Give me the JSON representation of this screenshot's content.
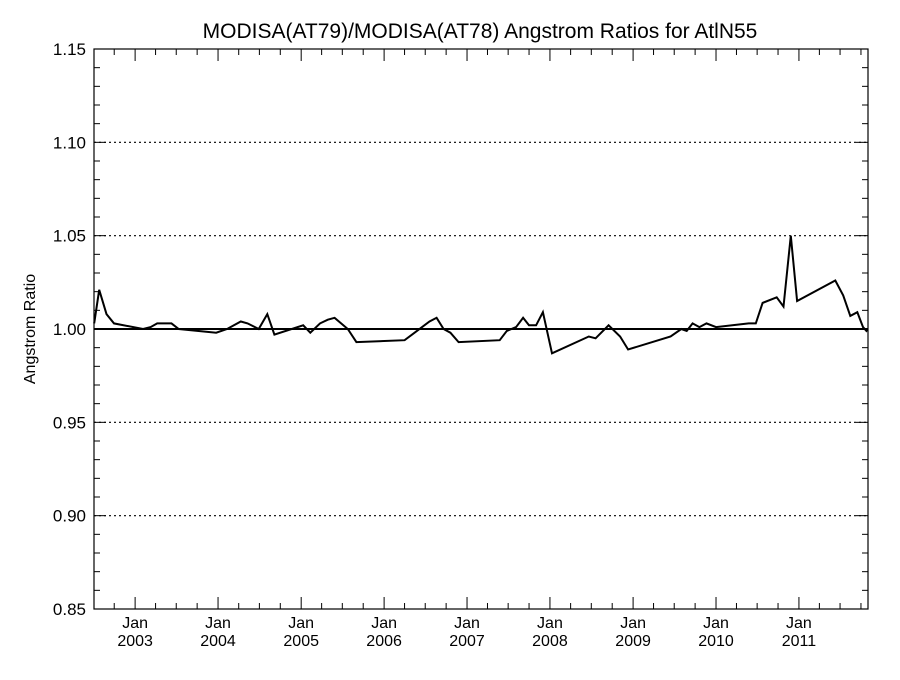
{
  "chart_data": {
    "type": "line",
    "title": "MODISA(AT79)/MODISA(AT78)  Angstrom Ratios for AtlN55",
    "xlabel": "",
    "ylabel": "Angstrom Ratio",
    "ylim": [
      0.85,
      1.15
    ],
    "xlim": [
      "2002-07-04",
      "2011-11-01"
    ],
    "yticks": [
      "0.85",
      "0.90",
      "0.95",
      "1.00",
      "1.05",
      "1.10",
      "1.15"
    ],
    "xticks": [
      {
        "month": "Jan",
        "year": "2003",
        "date": "2003-01-01"
      },
      {
        "month": "Jan",
        "year": "2004",
        "date": "2004-01-01"
      },
      {
        "month": "Jan",
        "year": "2005",
        "date": "2005-01-01"
      },
      {
        "month": "Jan",
        "year": "2006",
        "date": "2006-01-01"
      },
      {
        "month": "Jan",
        "year": "2007",
        "date": "2007-01-01"
      },
      {
        "month": "Jan",
        "year": "2008",
        "date": "2008-01-01"
      },
      {
        "month": "Jan",
        "year": "2009",
        "date": "2009-01-01"
      },
      {
        "month": "Jan",
        "year": "2010",
        "date": "2010-01-01"
      },
      {
        "month": "Jan",
        "year": "2011",
        "date": "2011-01-01"
      }
    ],
    "grid": "dotted horizontal lines at major y ticks",
    "reference_line": 1.0,
    "series": [
      {
        "color": "#000000",
        "points": [
          [
            "2002-07-05",
            1.003
          ],
          [
            "2002-07-27",
            1.021
          ],
          [
            "2002-08-28",
            1.008
          ],
          [
            "2002-09-30",
            1.003
          ],
          [
            "2003-02-05",
            1.0
          ],
          [
            "2003-03-10",
            1.001
          ],
          [
            "2003-04-08",
            1.003
          ],
          [
            "2003-05-12",
            1.003
          ],
          [
            "2003-06-10",
            1.003
          ],
          [
            "2003-07-12",
            1.0
          ],
          [
            "2003-12-24",
            0.998
          ],
          [
            "2004-02-10",
            1.0
          ],
          [
            "2004-04-10",
            1.004
          ],
          [
            "2004-05-10",
            1.003
          ],
          [
            "2004-06-28",
            1.0
          ],
          [
            "2004-08-05",
            1.008
          ],
          [
            "2004-09-05",
            0.997
          ],
          [
            "2005-01-10",
            1.002
          ],
          [
            "2005-02-10",
            0.998
          ],
          [
            "2005-03-25",
            1.003
          ],
          [
            "2005-04-28",
            1.005
          ],
          [
            "2005-05-28",
            1.006
          ],
          [
            "2005-07-25",
            1.0
          ],
          [
            "2005-09-01",
            0.993
          ],
          [
            "2006-04-01",
            0.994
          ],
          [
            "2006-05-15",
            0.998
          ],
          [
            "2006-07-20",
            1.004
          ],
          [
            "2006-08-20",
            1.006
          ],
          [
            "2006-09-20",
            1.0
          ],
          [
            "2006-10-20",
            0.998
          ],
          [
            "2006-11-25",
            0.993
          ],
          [
            "2007-05-25",
            0.994
          ],
          [
            "2007-06-25",
            0.999
          ],
          [
            "2007-08-05",
            1.001
          ],
          [
            "2007-09-05",
            1.006
          ],
          [
            "2007-10-01",
            1.002
          ],
          [
            "2007-11-01",
            1.002
          ],
          [
            "2007-12-01",
            1.009
          ],
          [
            "2008-01-10",
            0.987
          ],
          [
            "2008-06-20",
            0.996
          ],
          [
            "2008-07-20",
            0.995
          ],
          [
            "2008-09-15",
            1.002
          ],
          [
            "2008-11-05",
            0.996
          ],
          [
            "2008-12-10",
            0.989
          ],
          [
            "2009-06-15",
            0.996
          ],
          [
            "2009-08-01",
            1.0
          ],
          [
            "2009-08-25",
            0.999
          ],
          [
            "2009-09-20",
            1.003
          ],
          [
            "2009-10-20",
            1.001
          ],
          [
            "2009-11-20",
            1.003
          ],
          [
            "2010-01-01",
            1.001
          ],
          [
            "2010-05-25",
            1.003
          ],
          [
            "2010-06-25",
            1.003
          ],
          [
            "2010-07-25",
            1.014
          ],
          [
            "2010-09-25",
            1.017
          ],
          [
            "2010-10-25",
            1.012
          ],
          [
            "2010-11-26",
            1.05
          ],
          [
            "2010-12-24",
            1.015
          ],
          [
            "2011-06-10",
            1.026
          ],
          [
            "2011-07-15",
            1.018
          ],
          [
            "2011-08-15",
            1.007
          ],
          [
            "2011-09-15",
            1.009
          ],
          [
            "2011-10-10",
            1.001
          ],
          [
            "2011-10-25",
            0.999
          ],
          [
            "2011-10-31",
            1.0
          ]
        ]
      }
    ]
  }
}
